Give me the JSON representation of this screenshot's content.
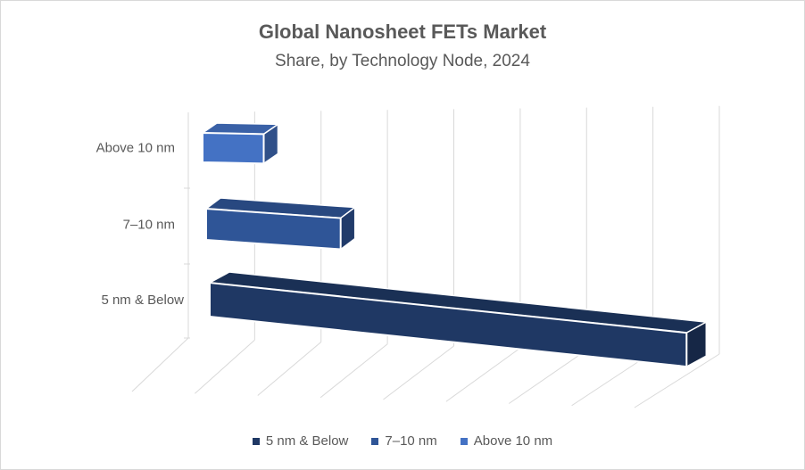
{
  "chart_data": {
    "type": "bar",
    "orientation": "horizontal",
    "style": "3d",
    "title": "Global Nanosheet FETs Market",
    "subtitle": "Share, by Technology Node, 2024",
    "categories": [
      "5 nm & Below",
      "7–10 nm",
      "Above 10 nm"
    ],
    "values": [
      78,
      22,
      10
    ],
    "xlim": [
      0,
      80
    ],
    "grid": true,
    "legend_position": "bottom",
    "colors": [
      "#1f3864",
      "#2f5597",
      "#4472c4"
    ],
    "legend": [
      "5 nm & Below",
      "7–10 nm",
      "Above 10 nm"
    ]
  }
}
